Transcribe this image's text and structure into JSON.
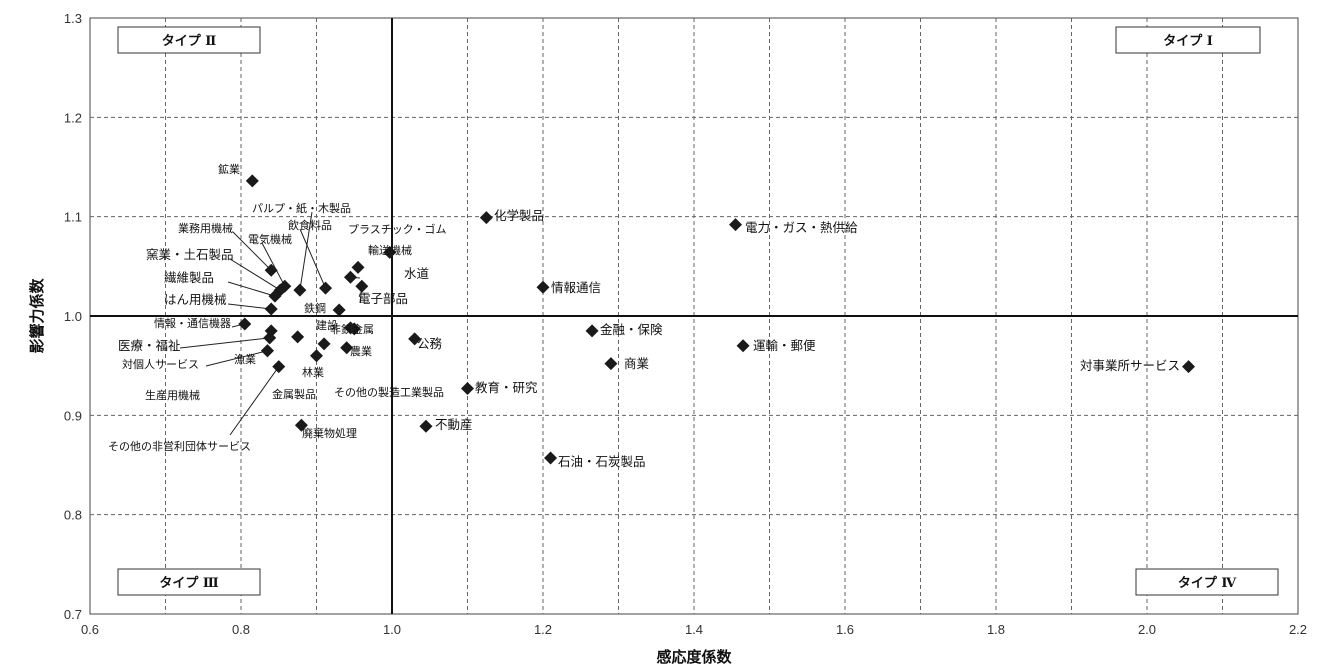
{
  "chart_data": {
    "type": "scatter",
    "xlabel": "感応度係数",
    "ylabel": "影響力係数",
    "xlim": [
      0.6,
      2.2
    ],
    "ylim": [
      0.7,
      1.3
    ],
    "xticks": [
      "0.6",
      "0.8",
      "1.0",
      "1.2",
      "1.4",
      "1.6",
      "1.8",
      "2.0",
      "2.2"
    ],
    "yticks": [
      "0.7",
      "0.8",
      "0.9",
      "1.0",
      "1.1",
      "1.2",
      "1.3"
    ],
    "grid": true,
    "reference_lines": {
      "x": 1.0,
      "y": 1.0
    },
    "quadrant_labels": [
      {
        "text": "タイプ Ⅰ",
        "quadrant": "top-right"
      },
      {
        "text": "タイプ Ⅱ",
        "quadrant": "top-left"
      },
      {
        "text": "タイプ Ⅲ",
        "quadrant": "bottom-left"
      },
      {
        "text": "タイプ Ⅳ",
        "quadrant": "bottom-right"
      }
    ],
    "points": [
      {
        "label": "鉱業",
        "x": 0.815,
        "y": 1.136
      },
      {
        "label": "パルプ・紙・木製品",
        "x": 0.878,
        "y": 1.026
      },
      {
        "label": "業務用機械",
        "x": 0.84,
        "y": 1.046
      },
      {
        "label": "電気機械",
        "x": 0.858,
        "y": 1.03
      },
      {
        "label": "飲食料品",
        "x": 0.912,
        "y": 1.028
      },
      {
        "label": "プラスチック・ゴム",
        "x": 0.955,
        "y": 1.049
      },
      {
        "label": "輸送機械",
        "x": 0.997,
        "y": 1.064
      },
      {
        "label": "窯業・土石製品",
        "x": 0.852,
        "y": 1.026
      },
      {
        "label": "水道",
        "x": 0.945,
        "y": 1.039
      },
      {
        "label": "繊維製品",
        "x": 0.845,
        "y": 1.02
      },
      {
        "label": "はん用機械",
        "x": 0.84,
        "y": 1.007
      },
      {
        "label": "電子部品",
        "x": 0.96,
        "y": 1.03
      },
      {
        "label": "鉄鋼",
        "x": 0.93,
        "y": 1.006
      },
      {
        "label": "情報・通信機器",
        "x": 0.805,
        "y": 0.992
      },
      {
        "label": "医療・福祉",
        "x": 0.838,
        "y": 0.978
      },
      {
        "label": "対個人サービス",
        "x": 0.835,
        "y": 0.965
      },
      {
        "label": "建設",
        "x": 0.95,
        "y": 0.987
      },
      {
        "label": "非鉄金属",
        "x": 0.945,
        "y": 0.988
      },
      {
        "label": "公務",
        "x": 1.03,
        "y": 0.977
      },
      {
        "label": "農業",
        "x": 0.94,
        "y": 0.968
      },
      {
        "label": "漁業",
        "x": 0.835,
        "y": 0.965
      },
      {
        "label": "林業",
        "x": 0.9,
        "y": 0.96
      },
      {
        "label": "生産用機械",
        "x": 0.84,
        "y": 0.985
      },
      {
        "label": "金属製品",
        "x": 0.875,
        "y": 0.979
      },
      {
        "label": "その他の製造工業製品",
        "x": 0.91,
        "y": 0.972
      },
      {
        "label": "その他の非営利団体サービス",
        "x": 0.85,
        "y": 0.949
      },
      {
        "label": "廃棄物処理",
        "x": 0.88,
        "y": 0.89
      },
      {
        "label": "化学製品",
        "x": 1.125,
        "y": 1.099
      },
      {
        "label": "情報通信",
        "x": 1.2,
        "y": 1.029
      },
      {
        "label": "金融・保険",
        "x": 1.265,
        "y": 0.985
      },
      {
        "label": "商業",
        "x": 1.29,
        "y": 0.952
      },
      {
        "label": "教育・研究",
        "x": 1.1,
        "y": 0.927
      },
      {
        "label": "不動産",
        "x": 1.045,
        "y": 0.889
      },
      {
        "label": "石油・石炭製品",
        "x": 1.21,
        "y": 0.857
      },
      {
        "label": "電力・ガス・熱供給",
        "x": 1.455,
        "y": 1.092
      },
      {
        "label": "運輸・郵便",
        "x": 1.465,
        "y": 0.97
      },
      {
        "label": "対事業所サービス",
        "x": 2.055,
        "y": 0.949
      }
    ]
  },
  "colors": {
    "marker": "#1a1a1a",
    "grid": "#666666",
    "reference_line": "#111111"
  }
}
